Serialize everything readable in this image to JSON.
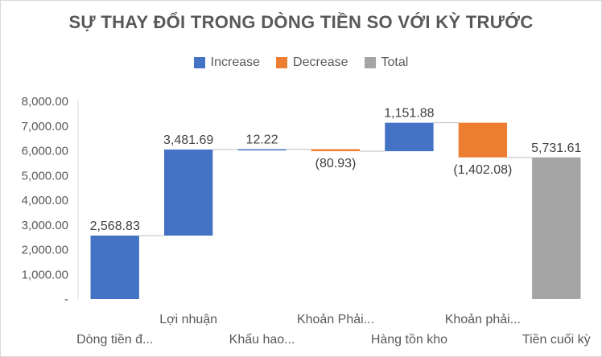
{
  "chart_data": {
    "type": "waterfall",
    "title": "SỰ THAY ĐỔI TRONG DÒNG TIỀN SO VỚI KỲ TRƯỚC",
    "xlabel": "",
    "ylabel": "",
    "ylim": [
      0,
      8000
    ],
    "y_ticks": [
      0,
      1000,
      2000,
      3000,
      4000,
      5000,
      6000,
      7000,
      8000
    ],
    "y_tick_labels": [
      "-",
      "1,000.00",
      "2,000.00",
      "3,000.00",
      "4,000.00",
      "5,000.00",
      "6,000.00",
      "7,000.00",
      "8,000.00"
    ],
    "grid": false,
    "legend_position": "top",
    "legend": [
      {
        "name": "Increase",
        "color": "#4472c4"
      },
      {
        "name": "Decrease",
        "color": "#ed7d31"
      },
      {
        "name": "Total",
        "color": "#a5a5a5"
      }
    ],
    "categories": [
      "Dòng tiền đ...",
      "Lợi nhuận",
      "Khấu hao...",
      "Khoản Phải...",
      "Hàng tồn kho",
      "Khoản phải...",
      "Tiền cuối kỳ"
    ],
    "values": [
      2568.83,
      3481.69,
      12.22,
      -80.93,
      1151.88,
      -1402.08,
      5731.61
    ],
    "kinds": [
      "increase",
      "increase",
      "increase",
      "decrease",
      "increase",
      "decrease",
      "total"
    ],
    "data_labels": [
      "2,568.83",
      "3,481.69",
      "12.22",
      "(80.93)",
      "1,151.88",
      "(1,402.08)",
      "5,731.61"
    ]
  }
}
